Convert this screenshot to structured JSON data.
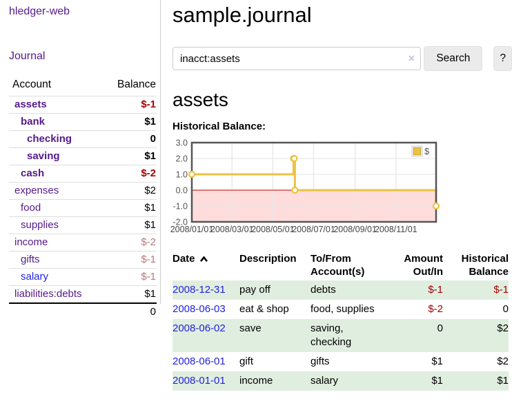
{
  "sidebar": {
    "brand": "hledger-web",
    "nav": [
      {
        "label": "Journal"
      }
    ],
    "accounts_table": {
      "headers": [
        "Account",
        "Balance"
      ],
      "rows": [
        {
          "name": "assets",
          "indent": 1,
          "bold": true,
          "balance": "$-1",
          "neg": "strong"
        },
        {
          "name": "bank",
          "indent": 2,
          "bold": true,
          "balance": "$1"
        },
        {
          "name": "checking",
          "indent": 3,
          "bold": true,
          "balance": "0"
        },
        {
          "name": "saving",
          "indent": 3,
          "bold": true,
          "balance": "$1"
        },
        {
          "name": "cash",
          "indent": 2,
          "bold": true,
          "balance": "$-2",
          "neg": "strong"
        },
        {
          "name": "expenses",
          "indent": 1,
          "bold": false,
          "balance": "$2"
        },
        {
          "name": "food",
          "indent": 2,
          "bold": false,
          "balance": "$1"
        },
        {
          "name": "supplies",
          "indent": 2,
          "bold": false,
          "balance": "$1"
        },
        {
          "name": "income",
          "indent": 1,
          "bold": false,
          "balance": "$-2",
          "neg": "soft"
        },
        {
          "name": "gifts",
          "indent": 2,
          "bold": false,
          "balance": "$-1",
          "neg": "soft"
        },
        {
          "name": "salary",
          "indent": 2,
          "bold": false,
          "balance": "$-1",
          "neg": "soft",
          "link_color": "blue"
        },
        {
          "name": "liabilities:debts",
          "indent": 1,
          "bold": false,
          "balance": "$1"
        }
      ],
      "total": "0"
    }
  },
  "header": {
    "title": "sample.journal"
  },
  "search": {
    "value": "inacct:assets",
    "clear_icon": "×",
    "button_label": "Search",
    "help_label": "?"
  },
  "account_page": {
    "heading": "assets",
    "chart_label": "Historical Balance:"
  },
  "chart_data": {
    "type": "line",
    "line_style": "step",
    "title": "Historical Balance:",
    "xlabel": "",
    "ylabel": "",
    "xlim_days": [
      0,
      365
    ],
    "ylim": [
      -2,
      3
    ],
    "y_ticks": [
      3.0,
      2.0,
      1.0,
      0.0,
      -1.0,
      -2.0
    ],
    "x_ticks": [
      {
        "label": "2008/01/01",
        "day": 0
      },
      {
        "label": "2008/03/01",
        "day": 60
      },
      {
        "label": "2008/05/01",
        "day": 121
      },
      {
        "label": "2008/07/01",
        "day": 182
      },
      {
        "label": "2008/09/01",
        "day": 244
      },
      {
        "label": "2008/11/01",
        "day": 305
      }
    ],
    "series": [
      {
        "name": "$",
        "color": "#edc240",
        "points": [
          {
            "date": "2008-01-01",
            "day": 0,
            "value": 1
          },
          {
            "date": "2008-06-01",
            "day": 152,
            "value": 2
          },
          {
            "date": "2008-06-02",
            "day": 153,
            "value": 2
          },
          {
            "date": "2008-06-03",
            "day": 154,
            "value": 0
          },
          {
            "date": "2008-12-31",
            "day": 365,
            "value": -1
          }
        ]
      }
    ],
    "legend": {
      "label": "$",
      "position": "top-right"
    },
    "grid": true,
    "grid_color": "#e6e6e6",
    "border_color": "#545454",
    "negative_region_color": "#ffdddd",
    "zero_line_color": "#bb0000",
    "axis_text_color": "#545454"
  },
  "register": {
    "columns": [
      "Date",
      "Description",
      "To/From Account(s)",
      "Amount Out/In",
      "Historical Balance"
    ],
    "rows": [
      {
        "date": "2008-12-31",
        "description": "pay off",
        "accounts": "debts",
        "amount": "$-1",
        "amount_neg": true,
        "balance": "$-1",
        "balance_neg": true
      },
      {
        "date": "2008-06-03",
        "description": "eat & shop",
        "accounts": "food, supplies",
        "amount": "$-2",
        "amount_neg": true,
        "balance": "0",
        "balance_neg": false
      },
      {
        "date": "2008-06-02",
        "description": "save",
        "accounts": "saving, checking",
        "amount": "0",
        "amount_neg": false,
        "balance": "$2",
        "balance_neg": false
      },
      {
        "date": "2008-06-01",
        "description": "gift",
        "accounts": "gifts",
        "amount": "$1",
        "amount_neg": false,
        "balance": "$2",
        "balance_neg": false
      },
      {
        "date": "2008-01-01",
        "description": "income",
        "accounts": "salary",
        "amount": "$1",
        "amount_neg": false,
        "balance": "$1",
        "balance_neg": false
      }
    ]
  }
}
